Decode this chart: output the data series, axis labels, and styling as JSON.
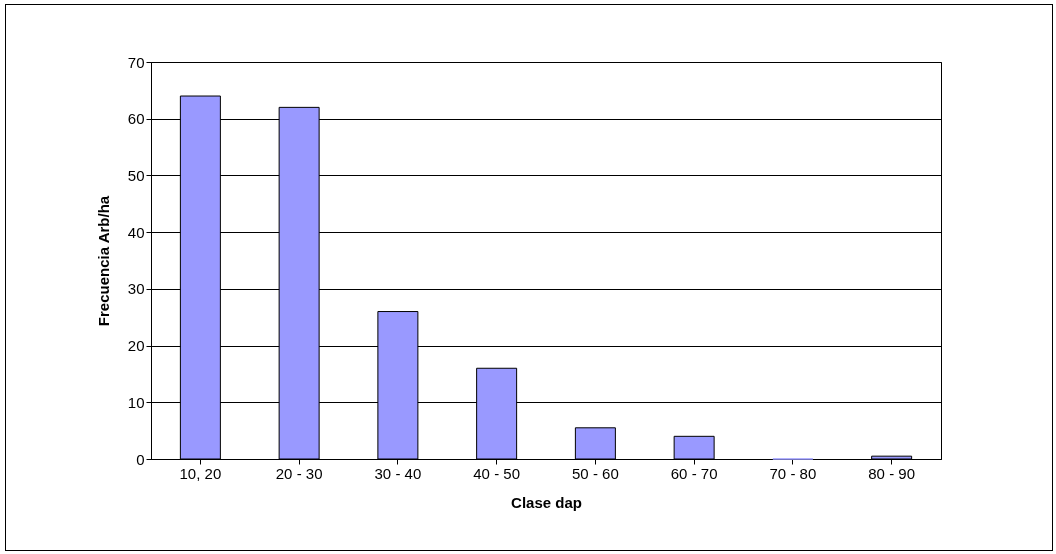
{
  "chart_data": {
    "type": "bar",
    "xlabel": "Clase dap",
    "ylabel": "Frecuencia Arb/ha",
    "categories": [
      "10, 20",
      "20 - 30",
      "30 - 40",
      "40 - 50",
      "50 - 60",
      "60 - 70",
      "70 - 80",
      "80 - 90"
    ],
    "values": [
      64,
      62,
      26,
      16,
      5.5,
      4,
      0,
      0.5
    ],
    "color": "#9999ff",
    "ylim": [
      0,
      70
    ],
    "yticks": [
      0,
      10,
      20,
      30,
      40,
      50,
      60,
      70
    ],
    "grid": "y"
  }
}
